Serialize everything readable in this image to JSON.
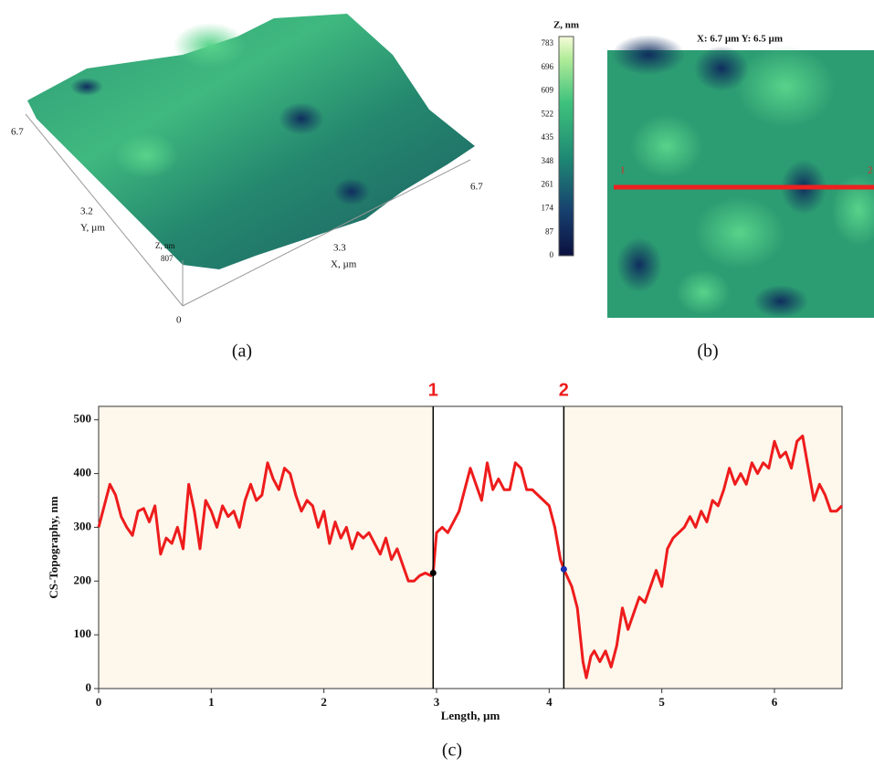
{
  "panel_a": {
    "label": "(a)",
    "y_max": "6.7",
    "y_mid": "3.2",
    "y_title": "Y, µm",
    "z_title": "Z, nm",
    "z_max": "807",
    "origin": "0",
    "x_mid": "3.3",
    "x_title": "X, µm",
    "x_max": "6.7"
  },
  "colorbar": {
    "title": "Z, nm",
    "ticks": [
      "783",
      "696",
      "609",
      "522",
      "435",
      "348",
      "261",
      "174",
      "87",
      "0"
    ]
  },
  "panel_b": {
    "label": "(b)",
    "header": "X: 6.7 µm   Y: 6.5 µm",
    "marker_start": "1",
    "marker_end": "2"
  },
  "chart_data": {
    "type": "line",
    "label": "(c)",
    "x_label": "Length, µm",
    "y_label": "CS-Topography, nm",
    "color": "#ee1c1c",
    "xlim": [
      0,
      6.6
    ],
    "ylim": [
      0,
      525
    ],
    "xticks": [
      0,
      1,
      2,
      3,
      4,
      5,
      6
    ],
    "yticks": [
      0,
      100,
      200,
      300,
      400,
      500
    ],
    "cursors": [
      {
        "label": "1",
        "x": 2.97,
        "y": 215,
        "color": "#000000"
      },
      {
        "label": "2",
        "x": 4.13,
        "y": 222,
        "color": "#1a2db0"
      }
    ],
    "x": [
      0,
      0.05,
      0.1,
      0.15,
      0.2,
      0.25,
      0.3,
      0.35,
      0.4,
      0.45,
      0.5,
      0.55,
      0.6,
      0.65,
      0.7,
      0.75,
      0.8,
      0.85,
      0.9,
      0.95,
      1.0,
      1.05,
      1.1,
      1.15,
      1.2,
      1.25,
      1.3,
      1.35,
      1.4,
      1.45,
      1.5,
      1.55,
      1.6,
      1.65,
      1.7,
      1.75,
      1.8,
      1.85,
      1.9,
      1.95,
      2.0,
      2.05,
      2.1,
      2.15,
      2.2,
      2.25,
      2.3,
      2.35,
      2.4,
      2.45,
      2.5,
      2.55,
      2.6,
      2.65,
      2.7,
      2.75,
      2.8,
      2.85,
      2.9,
      2.95,
      2.97,
      3.0,
      3.05,
      3.1,
      3.15,
      3.2,
      3.25,
      3.3,
      3.35,
      3.4,
      3.45,
      3.5,
      3.55,
      3.6,
      3.65,
      3.7,
      3.75,
      3.8,
      3.85,
      3.9,
      3.95,
      4.0,
      4.05,
      4.1,
      4.13,
      4.2,
      4.25,
      4.3,
      4.33,
      4.37,
      4.4,
      4.45,
      4.5,
      4.55,
      4.6,
      4.65,
      4.7,
      4.75,
      4.8,
      4.85,
      4.9,
      4.95,
      5.0,
      5.05,
      5.1,
      5.15,
      5.2,
      5.25,
      5.3,
      5.35,
      5.4,
      5.45,
      5.5,
      5.55,
      5.6,
      5.65,
      5.7,
      5.75,
      5.8,
      5.85,
      5.9,
      5.95,
      6.0,
      6.05,
      6.1,
      6.15,
      6.2,
      6.25,
      6.3,
      6.35,
      6.4,
      6.45,
      6.5,
      6.55,
      6.6
    ],
    "values": [
      300,
      340,
      380,
      360,
      320,
      300,
      285,
      330,
      335,
      310,
      340,
      250,
      280,
      270,
      300,
      260,
      380,
      330,
      260,
      350,
      330,
      300,
      340,
      320,
      330,
      300,
      350,
      380,
      350,
      360,
      420,
      390,
      370,
      410,
      400,
      360,
      330,
      350,
      340,
      300,
      330,
      270,
      310,
      280,
      300,
      260,
      290,
      280,
      290,
      270,
      250,
      280,
      240,
      260,
      230,
      200,
      200,
      210,
      215,
      210,
      215,
      290,
      300,
      290,
      310,
      330,
      370,
      410,
      380,
      350,
      420,
      370,
      390,
      370,
      370,
      420,
      410,
      370,
      370,
      360,
      350,
      340,
      300,
      240,
      222,
      190,
      150,
      50,
      20,
      60,
      70,
      50,
      70,
      40,
      80,
      150,
      110,
      140,
      170,
      160,
      190,
      220,
      190,
      260,
      280,
      290,
      300,
      320,
      300,
      330,
      310,
      350,
      340,
      370,
      410,
      380,
      400,
      380,
      420,
      400,
      420,
      410,
      460,
      430,
      440,
      410,
      460,
      470,
      410,
      350,
      380,
      360,
      330,
      330,
      340
    ]
  }
}
